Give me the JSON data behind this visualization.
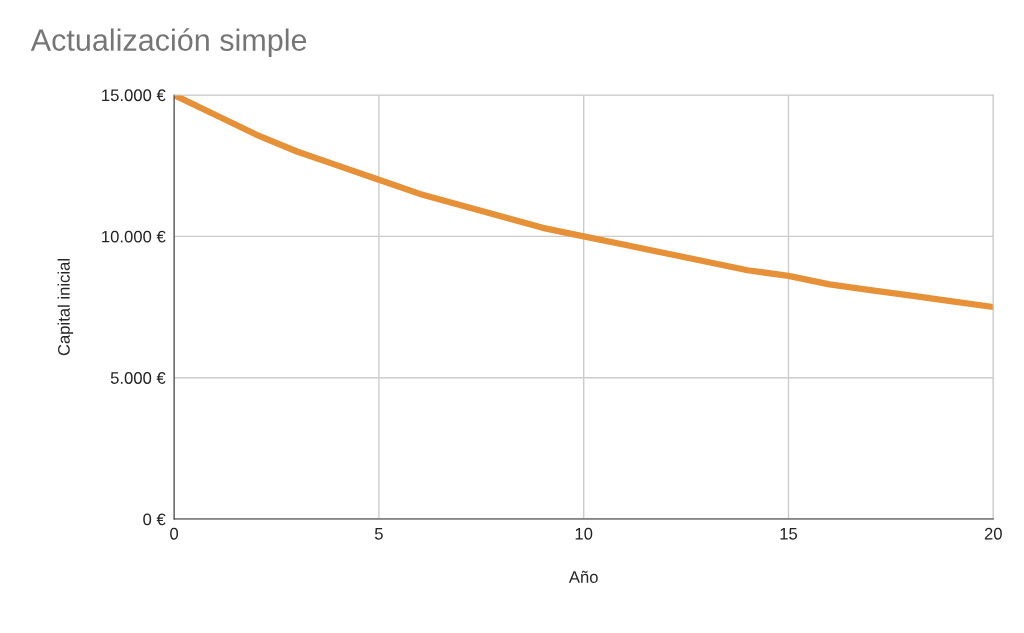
{
  "chart_data": {
    "type": "line",
    "title": "Actualización simple",
    "xlabel": "Año",
    "ylabel": "Capital inicial",
    "x": [
      0,
      1,
      2,
      3,
      4,
      5,
      6,
      7,
      8,
      9,
      10,
      11,
      12,
      13,
      14,
      15,
      16,
      17,
      18,
      19,
      20
    ],
    "series": [
      {
        "color": "#e69138",
        "values": [
          15000,
          14300,
          13600,
          13000,
          12500,
          12000,
          11500,
          11100,
          10700,
          10300,
          10000,
          9700,
          9400,
          9100,
          8800,
          8600,
          8300,
          8100,
          7900,
          7700,
          7500
        ]
      }
    ],
    "xlim": [
      0,
      20
    ],
    "xticks": [
      0,
      5,
      10,
      15,
      20
    ],
    "ylim": [
      0,
      15000
    ],
    "yticks": [
      {
        "value": 0,
        "label": "0 €"
      },
      {
        "value": 5000,
        "label": "5.000 €"
      },
      {
        "value": 10000,
        "label": "10.000 €"
      },
      {
        "value": 15000,
        "label": "15.000 €"
      }
    ],
    "grid": true,
    "legend": false,
    "marker": "none",
    "line_style": "solid"
  }
}
